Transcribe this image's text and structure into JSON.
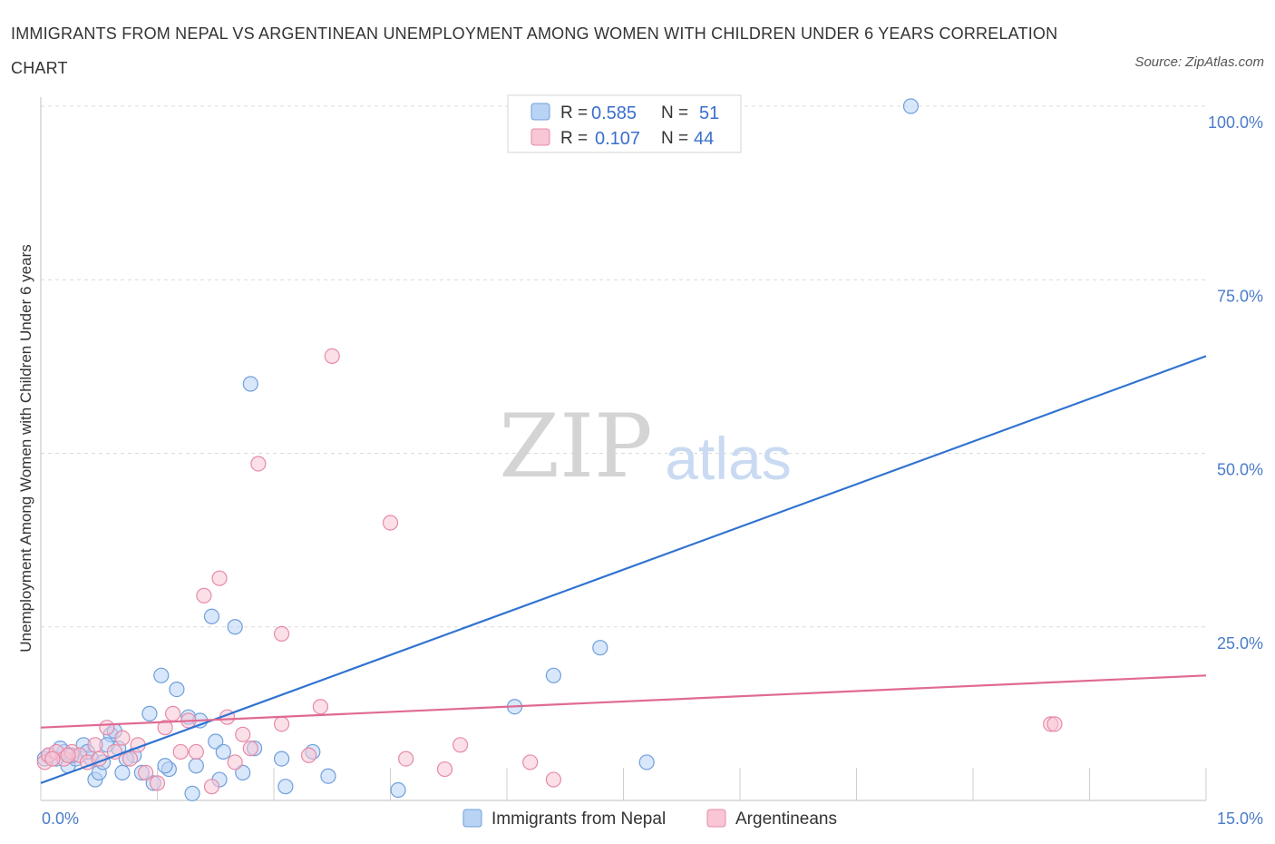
{
  "title": "IMMIGRANTS FROM NEPAL VS ARGENTINEAN UNEMPLOYMENT AMONG WOMEN WITH CHILDREN UNDER 6 YEARS CORRELATION CHART",
  "source": "Source: ZipAtlas.com",
  "watermark": {
    "zip": "ZIP",
    "atlas": "atlas"
  },
  "legend_top": [
    {
      "r_label": "R =",
      "r_value": "0.585",
      "n_label": "N =",
      "n_value": "51",
      "fill": "#b9d3f5",
      "stroke": "#6f9fdc"
    },
    {
      "r_label": "R =",
      "r_value": "0.107",
      "n_label": "N =",
      "n_value": "44",
      "fill": "#f8c6d5",
      "stroke": "#e68aa8"
    }
  ],
  "chart_data": {
    "type": "scatter",
    "title": "IMMIGRANTS FROM NEPAL VS ARGENTINEAN UNEMPLOYMENT AMONG WOMEN WITH CHILDREN UNDER 6 YEARS CORRELATION CHART",
    "xlabel": "",
    "ylabel": "Unemployment Among Women with Children Under 6 years",
    "xlim": [
      0,
      15
    ],
    "ylim": [
      0,
      100
    ],
    "x_tick_labels": [
      "0.0%",
      "15.0%"
    ],
    "y_ticks": [
      25,
      50,
      75,
      100
    ],
    "y_tick_labels": [
      "25.0%",
      "50.0%",
      "75.0%",
      "100.0%"
    ],
    "grid": "horizontal dashed",
    "legend_position": "bottom-center",
    "series": [
      {
        "name": "Immigrants from Nepal",
        "color": "#6f9fdc",
        "fill": "#b9d3f5",
        "trend_color": "#2f72d0",
        "trend": [
          [
            0,
            2.5
          ],
          [
            15,
            64
          ]
        ],
        "points": [
          [
            0.05,
            6
          ],
          [
            0.1,
            6.5
          ],
          [
            0.2,
            6
          ],
          [
            0.3,
            7
          ],
          [
            0.35,
            5
          ],
          [
            0.45,
            6
          ],
          [
            0.55,
            8
          ],
          [
            0.65,
            6
          ],
          [
            0.7,
            3
          ],
          [
            0.75,
            4
          ],
          [
            0.8,
            5.5
          ],
          [
            0.9,
            9.5
          ],
          [
            0.95,
            10
          ],
          [
            1.0,
            7.5
          ],
          [
            1.05,
            4
          ],
          [
            1.2,
            6.5
          ],
          [
            1.4,
            12.5
          ],
          [
            1.45,
            2.5
          ],
          [
            1.55,
            18
          ],
          [
            1.65,
            4.5
          ],
          [
            1.75,
            16
          ],
          [
            1.9,
            12
          ],
          [
            1.95,
            1
          ],
          [
            2.0,
            5
          ],
          [
            2.2,
            26.5
          ],
          [
            2.25,
            8.5
          ],
          [
            2.3,
            3
          ],
          [
            2.35,
            7
          ],
          [
            2.5,
            25
          ],
          [
            2.6,
            4
          ],
          [
            2.7,
            60
          ],
          [
            2.75,
            7.5
          ],
          [
            3.1,
            6
          ],
          [
            3.15,
            2
          ],
          [
            3.5,
            7
          ],
          [
            3.7,
            3.5
          ],
          [
            4.6,
            1.5
          ],
          [
            6.1,
            13.5
          ],
          [
            6.6,
            18
          ],
          [
            7.2,
            22
          ],
          [
            7.8,
            5.5
          ],
          [
            11.2,
            100
          ],
          [
            0.15,
            6
          ],
          [
            0.25,
            7.5
          ],
          [
            0.6,
            7
          ],
          [
            1.1,
            6
          ],
          [
            1.3,
            4
          ],
          [
            0.4,
            6.5
          ],
          [
            0.85,
            8
          ],
          [
            1.6,
            5
          ],
          [
            2.05,
            11.5
          ]
        ]
      },
      {
        "name": "Argentineans",
        "color": "#e68aa8",
        "fill": "#f8c6d5",
        "trend_color": "#e06a92",
        "trend": [
          [
            0,
            10.5
          ],
          [
            15,
            18
          ]
        ],
        "points": [
          [
            0.05,
            5.5
          ],
          [
            0.1,
            6.5
          ],
          [
            0.2,
            7
          ],
          [
            0.3,
            6
          ],
          [
            0.4,
            7
          ],
          [
            0.5,
            6.5
          ],
          [
            0.6,
            5.5
          ],
          [
            0.7,
            8
          ],
          [
            0.85,
            10.5
          ],
          [
            0.95,
            7
          ],
          [
            1.05,
            9
          ],
          [
            1.15,
            6
          ],
          [
            1.25,
            8
          ],
          [
            1.35,
            4
          ],
          [
            1.5,
            2.5
          ],
          [
            1.6,
            10.5
          ],
          [
            1.7,
            12.5
          ],
          [
            1.8,
            7
          ],
          [
            1.9,
            11.5
          ],
          [
            2.0,
            7
          ],
          [
            2.1,
            29.5
          ],
          [
            2.2,
            2
          ],
          [
            2.3,
            32
          ],
          [
            2.4,
            12
          ],
          [
            2.5,
            5.5
          ],
          [
            2.6,
            9.5
          ],
          [
            2.7,
            7.5
          ],
          [
            2.8,
            48.5
          ],
          [
            3.1,
            24
          ],
          [
            3.1,
            11
          ],
          [
            3.45,
            6.5
          ],
          [
            3.6,
            13.5
          ],
          [
            3.75,
            64
          ],
          [
            4.5,
            40
          ],
          [
            4.7,
            6
          ],
          [
            5.2,
            4.5
          ],
          [
            5.4,
            8
          ],
          [
            6.3,
            5.5
          ],
          [
            6.6,
            3
          ],
          [
            13.0,
            11
          ],
          [
            0.15,
            6
          ],
          [
            0.35,
            6.5
          ],
          [
            0.75,
            6
          ],
          [
            13.05,
            11
          ]
        ]
      }
    ]
  }
}
